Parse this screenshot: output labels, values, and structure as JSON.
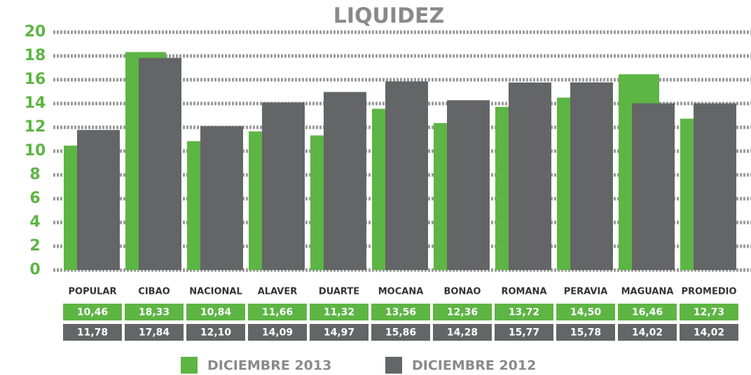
{
  "chart_data": {
    "type": "bar",
    "title": "LIQUIDEZ",
    "categories": [
      "POPULAR",
      "CIBAO",
      "NACIONAL",
      "ALAVER",
      "DUARTE",
      "MOCANA",
      "BONAO",
      "ROMANA",
      "PERAVIA",
      "MAGUANA",
      "PROMEDIO"
    ],
    "series": [
      {
        "name": "DICIEMBRE 2013",
        "color": "#5db544",
        "values": [
          10.46,
          18.33,
          10.84,
          11.66,
          11.32,
          13.56,
          12.36,
          13.72,
          14.5,
          16.46,
          12.73
        ],
        "value_labels": [
          "10,46",
          "18,33",
          "10,84",
          "11,66",
          "11,32",
          "13,56",
          "12,36",
          "13,72",
          "14,50",
          "16,46",
          "12,73"
        ]
      },
      {
        "name": "DICIEMBRE 2012",
        "color": "#646567",
        "values": [
          11.78,
          17.84,
          12.1,
          14.09,
          14.97,
          15.86,
          14.28,
          15.77,
          15.78,
          14.02,
          14.02
        ],
        "value_labels": [
          "11,78",
          "17,84",
          "12,10",
          "14,09",
          "14,97",
          "15,86",
          "14,28",
          "15,77",
          "15,78",
          "14,02",
          "14,02"
        ]
      }
    ],
    "ylim": [
      0,
      20
    ],
    "yticks": [
      0,
      2,
      4,
      6,
      8,
      10,
      12,
      14,
      16,
      18,
      20
    ],
    "grid": true
  }
}
